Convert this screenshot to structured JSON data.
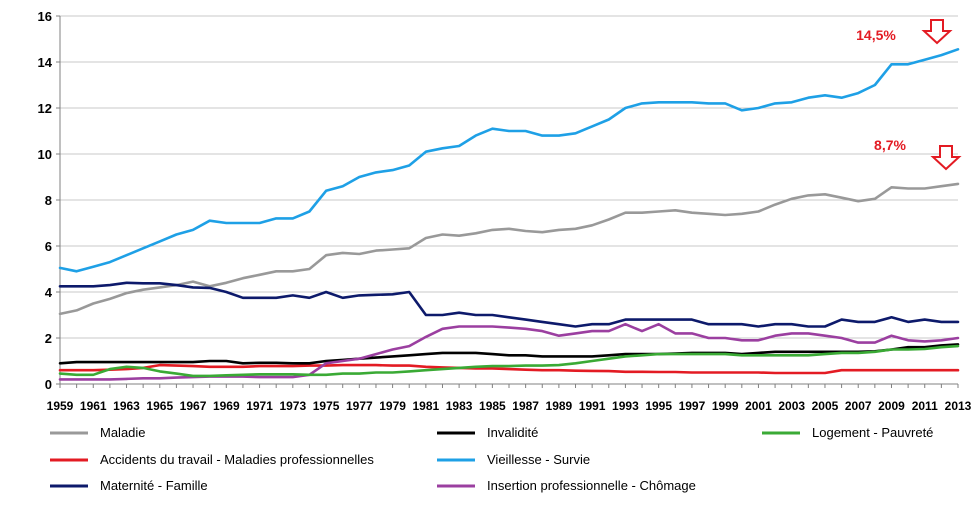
{
  "chart_data": {
    "type": "line",
    "title": "",
    "xlabel": "",
    "ylabel": "",
    "ylim": [
      0,
      16
    ],
    "yticks": [
      0,
      2,
      4,
      6,
      8,
      10,
      12,
      14,
      16
    ],
    "xticks": [
      "1959",
      "1961",
      "1963",
      "1965",
      "1967",
      "1969",
      "1971",
      "1973",
      "1975",
      "1977",
      "1979",
      "1981",
      "1983",
      "1985",
      "1987",
      "1989",
      "1991",
      "1993",
      "1995",
      "1997",
      "1999",
      "2001",
      "2003",
      "2005",
      "2007",
      "2009",
      "2011",
      "2013"
    ],
    "grid": "horizontal",
    "legend": "bottom",
    "x": [
      1959,
      1960,
      1961,
      1962,
      1963,
      1964,
      1965,
      1966,
      1967,
      1968,
      1969,
      1970,
      1971,
      1972,
      1973,
      1974,
      1975,
      1976,
      1977,
      1978,
      1979,
      1980,
      1981,
      1982,
      1983,
      1984,
      1985,
      1986,
      1987,
      1988,
      1989,
      1990,
      1991,
      1992,
      1993,
      1994,
      1995,
      1996,
      1997,
      1998,
      1999,
      2000,
      2001,
      2002,
      2003,
      2004,
      2005,
      2006,
      2007,
      2008,
      2009,
      2010,
      2011,
      2012,
      2013
    ],
    "series": [
      {
        "name": "Maladie",
        "color": "#999999",
        "values": [
          3.05,
          3.2,
          3.5,
          3.7,
          3.95,
          4.1,
          4.2,
          4.3,
          4.45,
          4.25,
          4.4,
          4.6,
          4.75,
          4.9,
          4.9,
          5.0,
          5.6,
          5.7,
          5.65,
          5.8,
          5.85,
          5.9,
          6.35,
          6.5,
          6.45,
          6.55,
          6.7,
          6.75,
          6.65,
          6.6,
          6.7,
          6.75,
          6.9,
          7.15,
          7.45,
          7.45,
          7.5,
          7.55,
          7.45,
          7.4,
          7.35,
          7.4,
          7.5,
          7.8,
          8.05,
          8.2,
          8.25,
          8.1,
          7.95,
          8.05,
          8.55,
          8.5,
          8.5,
          8.6,
          8.7
        ]
      },
      {
        "name": "Accidents du travail - Maladies professionnelles",
        "color": "#e31b23",
        "values": [
          0.6,
          0.6,
          0.6,
          0.62,
          0.65,
          0.7,
          0.82,
          0.8,
          0.78,
          0.75,
          0.75,
          0.75,
          0.78,
          0.78,
          0.78,
          0.8,
          0.8,
          0.82,
          0.82,
          0.82,
          0.8,
          0.8,
          0.75,
          0.72,
          0.7,
          0.68,
          0.68,
          0.65,
          0.62,
          0.6,
          0.6,
          0.58,
          0.57,
          0.56,
          0.53,
          0.53,
          0.52,
          0.52,
          0.5,
          0.5,
          0.5,
          0.5,
          0.5,
          0.48,
          0.48,
          0.48,
          0.48,
          0.6,
          0.6,
          0.6,
          0.6,
          0.6,
          0.6,
          0.6,
          0.6
        ]
      },
      {
        "name": "Maternité - Famille",
        "color": "#0d1a6b",
        "values": [
          4.25,
          4.25,
          4.25,
          4.3,
          4.4,
          4.38,
          4.38,
          4.3,
          4.2,
          4.18,
          4.0,
          3.75,
          3.75,
          3.75,
          3.85,
          3.75,
          4.0,
          3.75,
          3.85,
          3.88,
          3.9,
          4.0,
          3.0,
          3.0,
          3.1,
          3.0,
          3.0,
          2.9,
          2.8,
          2.7,
          2.6,
          2.5,
          2.6,
          2.6,
          2.8,
          2.8,
          2.8,
          2.8,
          2.8,
          2.6,
          2.6,
          2.6,
          2.5,
          2.6,
          2.6,
          2.5,
          2.5,
          2.8,
          2.7,
          2.7,
          2.9,
          2.7,
          2.8,
          2.7,
          2.7
        ]
      },
      {
        "name": "Invalidité",
        "color": "#000000",
        "values": [
          0.9,
          0.95,
          0.95,
          0.95,
          0.95,
          0.95,
          0.95,
          0.95,
          0.95,
          1.0,
          1.0,
          0.9,
          0.92,
          0.92,
          0.9,
          0.9,
          1.0,
          1.05,
          1.1,
          1.15,
          1.2,
          1.25,
          1.3,
          1.35,
          1.35,
          1.35,
          1.3,
          1.25,
          1.25,
          1.2,
          1.2,
          1.2,
          1.2,
          1.25,
          1.3,
          1.3,
          1.3,
          1.32,
          1.35,
          1.35,
          1.35,
          1.3,
          1.35,
          1.4,
          1.4,
          1.4,
          1.4,
          1.4,
          1.4,
          1.42,
          1.5,
          1.6,
          1.6,
          1.68,
          1.72
        ]
      },
      {
        "name": "Vieillesse - Survie",
        "color": "#1ea0e6",
        "values": [
          5.05,
          4.9,
          5.1,
          5.3,
          5.6,
          5.9,
          6.2,
          6.5,
          6.7,
          7.1,
          7.0,
          7.0,
          7.0,
          7.2,
          7.2,
          7.5,
          8.4,
          8.6,
          9.0,
          9.2,
          9.3,
          9.5,
          10.1,
          10.25,
          10.35,
          10.8,
          11.1,
          11.0,
          11.0,
          10.8,
          10.8,
          10.9,
          11.2,
          11.5,
          12.0,
          12.2,
          12.25,
          12.25,
          12.25,
          12.2,
          12.2,
          11.9,
          12.0,
          12.2,
          12.25,
          12.45,
          12.55,
          12.45,
          12.65,
          13.0,
          13.9,
          13.9,
          14.1,
          14.3,
          14.55
        ]
      },
      {
        "name": "Insertion professionnelle - Chômage",
        "color": "#9b3fa0",
        "values": [
          0.2,
          0.2,
          0.2,
          0.2,
          0.22,
          0.25,
          0.25,
          0.28,
          0.3,
          0.32,
          0.32,
          0.32,
          0.3,
          0.3,
          0.3,
          0.4,
          0.9,
          1.0,
          1.1,
          1.3,
          1.5,
          1.65,
          2.05,
          2.4,
          2.5,
          2.5,
          2.5,
          2.45,
          2.4,
          2.3,
          2.1,
          2.2,
          2.3,
          2.3,
          2.6,
          2.3,
          2.6,
          2.2,
          2.2,
          2.0,
          2.0,
          1.9,
          1.9,
          2.1,
          2.2,
          2.2,
          2.1,
          2.0,
          1.8,
          1.8,
          2.1,
          1.9,
          1.85,
          1.9,
          2.0
        ]
      },
      {
        "name": "Logement - Pauvreté",
        "color": "#3aaa35",
        "values": [
          0.45,
          0.4,
          0.4,
          0.65,
          0.75,
          0.7,
          0.55,
          0.45,
          0.35,
          0.35,
          0.38,
          0.4,
          0.42,
          0.42,
          0.42,
          0.4,
          0.4,
          0.45,
          0.45,
          0.5,
          0.5,
          0.55,
          0.6,
          0.65,
          0.7,
          0.75,
          0.78,
          0.78,
          0.8,
          0.8,
          0.82,
          0.9,
          1.0,
          1.1,
          1.2,
          1.25,
          1.3,
          1.3,
          1.3,
          1.3,
          1.3,
          1.25,
          1.25,
          1.25,
          1.25,
          1.25,
          1.3,
          1.35,
          1.35,
          1.4,
          1.5,
          1.5,
          1.52,
          1.6,
          1.65
        ]
      }
    ],
    "legend_order": [
      "Maladie",
      "Invalidité",
      "Logement - Pauvreté",
      "Accidents du travail - Maladies professionnelles",
      "Vieillesse - Survie",
      "Maternité - Famille",
      "Insertion professionnelle - Chômage"
    ],
    "annotations": [
      {
        "text": "14,5%",
        "series": "Vieillesse - Survie",
        "arrow": "down"
      },
      {
        "text": "8,7%",
        "series": "Maladie",
        "arrow": "down"
      }
    ]
  }
}
